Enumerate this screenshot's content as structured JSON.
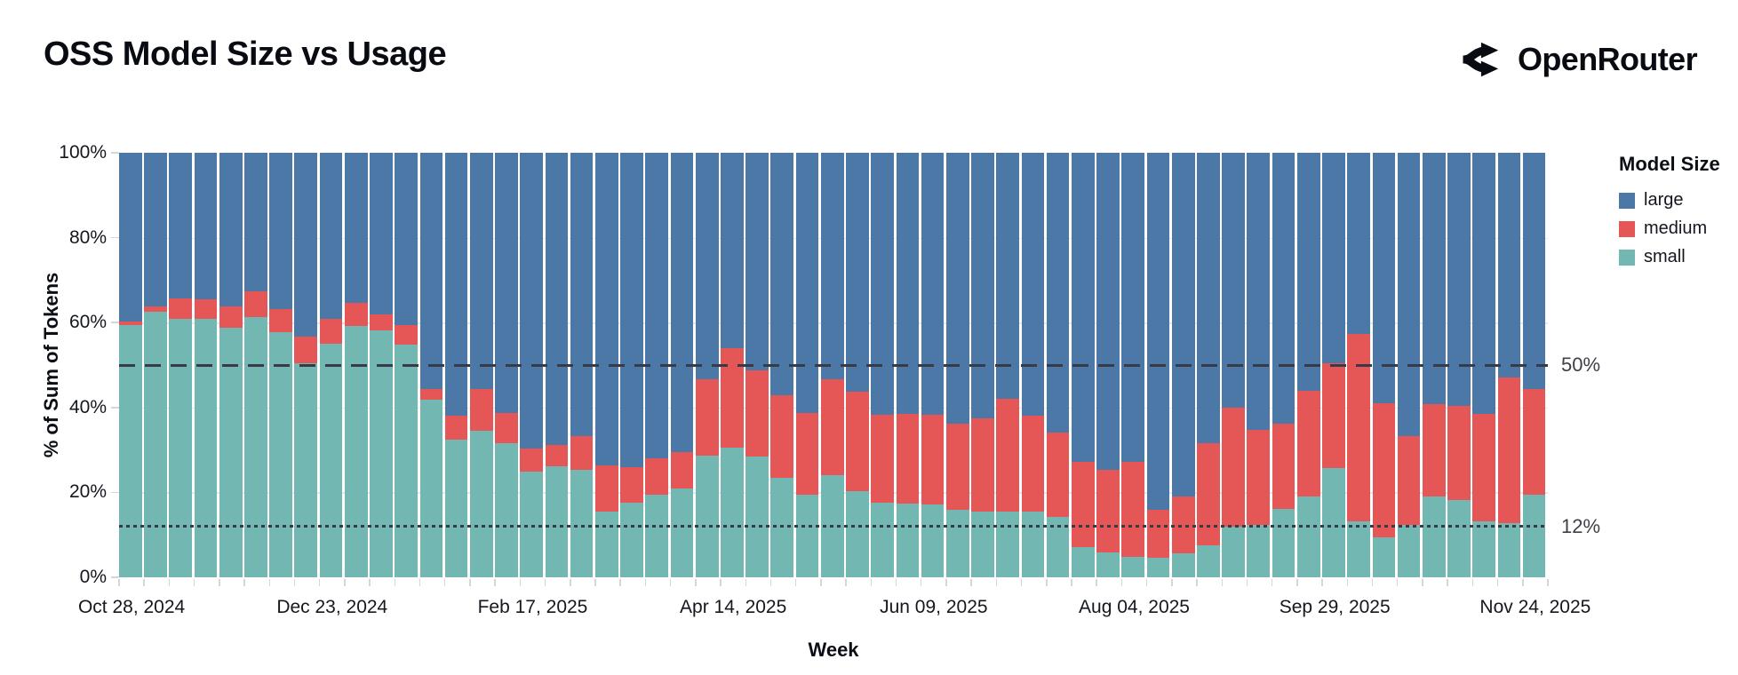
{
  "header": {
    "title": "OSS Model Size vs Usage",
    "brand": {
      "name": "OpenRouter",
      "icon": "openrouter-logo-icon"
    }
  },
  "chart_data": {
    "type": "bar",
    "subtype": "stacked-normalized-100pct",
    "title": "OSS Model Size vs Usage",
    "xlabel": "Week",
    "ylabel": "% of Sum of Tokens",
    "ylim": [
      0,
      100
    ],
    "grid_horizontal": [
      20,
      40,
      60,
      80
    ],
    "y_ticks": [
      {
        "value": 100,
        "label": "100%"
      },
      {
        "value": 80,
        "label": "80%"
      },
      {
        "value": 60,
        "label": "60%"
      },
      {
        "value": 40,
        "label": "40%"
      },
      {
        "value": 20,
        "label": "20%"
      },
      {
        "value": 0,
        "label": "0%"
      }
    ],
    "x_labeled_ticks": {
      "every": 8,
      "labels": [
        "Oct 28, 2024",
        "Dec 23, 2024",
        "Feb 17, 2025",
        "Apr 14, 2025",
        "Jun 09, 2025",
        "Aug 04, 2025",
        "Sep 29, 2025",
        "Nov 24, 2025"
      ]
    },
    "categories": [
      "Oct 28, 2024",
      "Nov 04, 2024",
      "Nov 11, 2024",
      "Nov 18, 2024",
      "Nov 25, 2024",
      "Dec 02, 2024",
      "Dec 09, 2024",
      "Dec 16, 2024",
      "Dec 23, 2024",
      "Dec 30, 2024",
      "Jan 06, 2025",
      "Jan 13, 2025",
      "Jan 20, 2025",
      "Jan 27, 2025",
      "Feb 03, 2025",
      "Feb 10, 2025",
      "Feb 17, 2025",
      "Feb 24, 2025",
      "Mar 03, 2025",
      "Mar 10, 2025",
      "Mar 17, 2025",
      "Mar 24, 2025",
      "Mar 31, 2025",
      "Apr 07, 2025",
      "Apr 14, 2025",
      "Apr 21, 2025",
      "Apr 28, 2025",
      "May 05, 2025",
      "May 12, 2025",
      "May 19, 2025",
      "May 26, 2025",
      "Jun 02, 2025",
      "Jun 09, 2025",
      "Jun 16, 2025",
      "Jun 23, 2025",
      "Jun 30, 2025",
      "Jul 07, 2025",
      "Jul 14, 2025",
      "Jul 21, 2025",
      "Jul 28, 2025",
      "Aug 04, 2025",
      "Aug 11, 2025",
      "Aug 18, 2025",
      "Aug 25, 2025",
      "Sep 01, 2025",
      "Sep 08, 2025",
      "Sep 15, 2025",
      "Sep 22, 2025",
      "Sep 29, 2025",
      "Oct 06, 2025",
      "Oct 13, 2025",
      "Oct 20, 2025",
      "Oct 27, 2025",
      "Nov 03, 2025",
      "Nov 10, 2025",
      "Nov 17, 2025",
      "Nov 24, 2025"
    ],
    "series": [
      {
        "name": "small",
        "color": "#72b7b2",
        "values": [
          59.4,
          62.5,
          60.9,
          60.8,
          58.7,
          61.3,
          57.7,
          50.5,
          55.0,
          59.2,
          58.1,
          54.8,
          41.8,
          32.4,
          34.6,
          31.5,
          24.8,
          26.2,
          25.3,
          15.5,
          17.6,
          19.5,
          20.9,
          28.6,
          30.6,
          28.5,
          23.4,
          19.5,
          24.1,
          20.3,
          17.5,
          17.3,
          17.1,
          15.9,
          15.5,
          15.5,
          15.5,
          14.2,
          7.1,
          5.8,
          4.8,
          4.6,
          5.7,
          7.6,
          12.0,
          12.4,
          16.2,
          19.0,
          25.8,
          13.2,
          9.4,
          12.4,
          19.0,
          18.3,
          13.2,
          12.7,
          19.4
        ]
      },
      {
        "name": "medium",
        "color": "#e45756",
        "values": [
          0.8,
          1.4,
          4.8,
          4.7,
          5.2,
          6.1,
          5.5,
          6.2,
          5.8,
          5.4,
          3.9,
          4.6,
          2.6,
          5.7,
          9.7,
          7.3,
          5.5,
          4.9,
          7.9,
          10.9,
          8.4,
          8.6,
          8.6,
          18.1,
          23.4,
          20.2,
          19.5,
          19.3,
          22.6,
          23.5,
          20.8,
          21.2,
          21.2,
          20.3,
          22.0,
          26.5,
          22.5,
          20.0,
          20.1,
          19.6,
          22.3,
          11.4,
          13.3,
          24.0,
          27.9,
          22.4,
          20.0,
          24.9,
          24.7,
          44.1,
          31.6,
          20.8,
          21.8,
          22.1,
          25.3,
          34.4,
          25.0
        ]
      },
      {
        "name": "large",
        "color": "#4c78a8",
        "values": [
          39.8,
          36.1,
          34.3,
          34.5,
          36.1,
          32.6,
          36.8,
          43.3,
          39.2,
          35.4,
          38.0,
          40.6,
          55.6,
          61.9,
          55.7,
          61.2,
          69.7,
          68.9,
          66.8,
          73.6,
          74.0,
          71.9,
          70.5,
          53.3,
          46.0,
          51.3,
          57.1,
          61.2,
          53.3,
          56.2,
          61.7,
          61.5,
          61.7,
          63.8,
          62.5,
          58.0,
          62.0,
          65.8,
          72.8,
          74.6,
          72.9,
          84.0,
          81.0,
          68.4,
          60.1,
          65.2,
          63.8,
          56.1,
          49.5,
          42.7,
          59.0,
          66.8,
          59.2,
          59.6,
          61.5,
          52.9,
          55.6
        ]
      }
    ],
    "reference_lines": [
      {
        "value": 50,
        "label": "50%",
        "style": "dashed"
      },
      {
        "value": 12,
        "label": "12%",
        "style": "dotted"
      }
    ],
    "legend": {
      "title": "Model Size",
      "position": "right",
      "entries": [
        {
          "label": "large",
          "color": "#4c78a8"
        },
        {
          "label": "medium",
          "color": "#e45756"
        },
        {
          "label": "small",
          "color": "#72b7b2"
        }
      ]
    }
  },
  "colors": {
    "background": "#ffffff",
    "title_text": "#090b12",
    "axis_text": "#15171f",
    "reference_line": "#383b45",
    "tick_mark": "#d5d5dd",
    "gridline": "#e7e7ee"
  }
}
